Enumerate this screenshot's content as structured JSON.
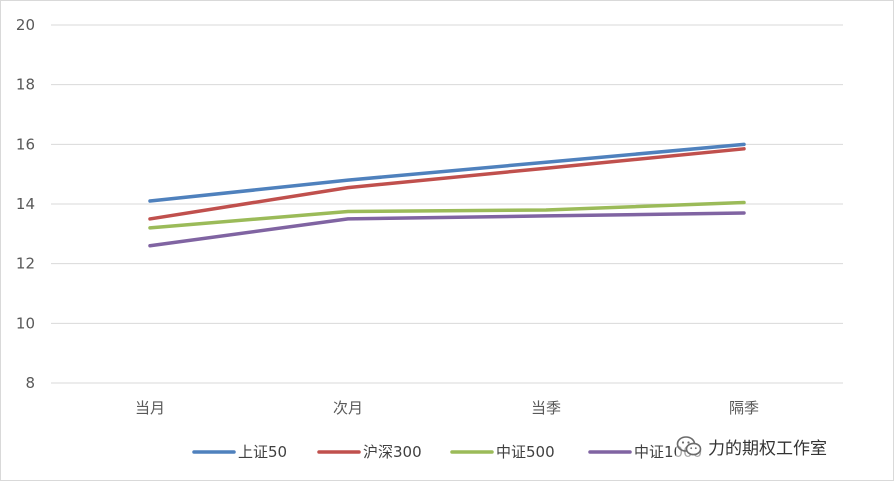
{
  "chart_data": {
    "type": "line",
    "categories": [
      "当月",
      "次月",
      "当季",
      "隔季"
    ],
    "ylim": [
      8,
      20
    ],
    "yticks": [
      8,
      10,
      12,
      14,
      16,
      18,
      20
    ],
    "grid": true,
    "legend_position": "bottom",
    "series": [
      {
        "name": "上证50",
        "color": "#4f81bd",
        "values": [
          14.1,
          14.8,
          15.4,
          16.0
        ]
      },
      {
        "name": "沪深300",
        "color": "#c0504d",
        "values": [
          13.5,
          14.55,
          15.2,
          15.85
        ]
      },
      {
        "name": "中证500",
        "color": "#9bbb59",
        "values": [
          13.2,
          13.75,
          13.8,
          14.05
        ]
      },
      {
        "name": "中证1000",
        "color": "#8064a2",
        "values": [
          12.6,
          13.5,
          13.6,
          13.7
        ]
      }
    ]
  },
  "watermark": {
    "icon": "wechat-icon",
    "text": "力的期权工作室"
  }
}
